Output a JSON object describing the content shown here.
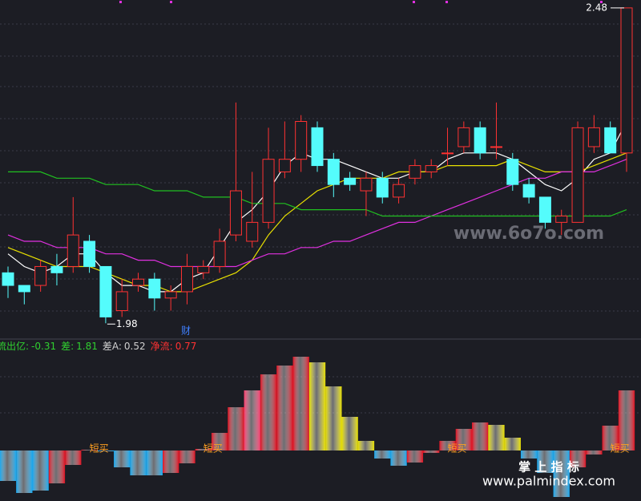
{
  "chart_data": [
    {
      "type": "candlestick",
      "open": [
        2.06,
        2.04,
        2.04,
        2.07,
        2.07,
        2.11,
        2.07,
        2.0,
        2.04,
        2.05,
        2.02,
        2.03,
        2.06,
        2.07,
        2.12,
        2.11,
        2.14,
        2.22,
        2.24,
        2.29,
        2.24,
        2.21,
        2.19,
        2.21,
        2.18,
        2.21,
        2.22,
        2.25,
        2.26,
        2.29,
        2.26,
        2.24,
        2.2,
        2.18,
        2.14,
        2.14,
        2.26,
        2.29,
        2.25
      ],
      "high": [
        2.07,
        2.04,
        2.08,
        2.09,
        2.18,
        2.12,
        2.07,
        2.05,
        2.06,
        2.06,
        2.04,
        2.09,
        2.08,
        2.13,
        2.33,
        2.22,
        2.29,
        2.3,
        2.31,
        2.3,
        2.25,
        2.22,
        2.22,
        2.22,
        2.21,
        2.24,
        2.24,
        2.29,
        2.3,
        2.3,
        2.33,
        2.25,
        2.21,
        2.18,
        2.16,
        2.3,
        2.31,
        2.3,
        2.48
      ],
      "low": [
        2.02,
        2.01,
        2.03,
        2.04,
        2.06,
        2.06,
        1.98,
        1.99,
        2.03,
        2.0,
        2.0,
        2.01,
        2.05,
        2.06,
        2.11,
        2.1,
        2.13,
        2.21,
        2.22,
        2.22,
        2.18,
        2.19,
        2.15,
        2.17,
        2.17,
        2.2,
        2.21,
        2.23,
        2.25,
        2.24,
        2.24,
        2.19,
        2.17,
        2.13,
        2.12,
        2.14,
        2.25,
        2.25,
        2.22
      ],
      "close": [
        2.04,
        2.03,
        2.07,
        2.06,
        2.12,
        2.07,
        1.99,
        2.03,
        2.05,
        2.02,
        2.03,
        2.07,
        2.07,
        2.11,
        2.19,
        2.14,
        2.24,
        2.24,
        2.3,
        2.23,
        2.2,
        2.2,
        2.21,
        2.18,
        2.2,
        2.23,
        2.23,
        2.25,
        2.29,
        2.25,
        2.26,
        2.2,
        2.18,
        2.14,
        2.15,
        2.29,
        2.29,
        2.25,
        2.48
      ],
      "up_color": "#ff3232",
      "down_color": "#54fcfc",
      "ylim": [
        1.96,
        2.49
      ],
      "series": [
        {
          "color": "#ffffff",
          "values": [
            2.09,
            2.07,
            2.06,
            2.07,
            2.09,
            2.09,
            2.06,
            2.04,
            2.04,
            2.03,
            2.03,
            2.05,
            2.06,
            2.1,
            2.14,
            2.16,
            2.19,
            2.23,
            2.25,
            2.24,
            2.24,
            2.23,
            2.22,
            2.21,
            2.21,
            2.22,
            2.22,
            2.24,
            2.25,
            2.25,
            2.25,
            2.24,
            2.22,
            2.2,
            2.19,
            2.21,
            2.24,
            2.25,
            2.3
          ]
        },
        {
          "color": "#e8e000",
          "values": [
            2.1,
            2.09,
            2.08,
            2.07,
            2.07,
            2.07,
            2.06,
            2.05,
            2.04,
            2.04,
            2.03,
            2.03,
            2.04,
            2.05,
            2.06,
            2.08,
            2.12,
            2.15,
            2.17,
            2.19,
            2.2,
            2.21,
            2.21,
            2.21,
            2.22,
            2.22,
            2.22,
            2.23,
            2.23,
            2.23,
            2.23,
            2.24,
            2.23,
            2.22,
            2.22,
            2.22,
            2.23,
            2.24,
            2.25
          ]
        },
        {
          "color": "#e030e0",
          "values": [
            2.12,
            2.11,
            2.11,
            2.1,
            2.1,
            2.1,
            2.09,
            2.09,
            2.08,
            2.08,
            2.07,
            2.07,
            2.07,
            2.07,
            2.07,
            2.08,
            2.09,
            2.09,
            2.1,
            2.1,
            2.11,
            2.11,
            2.12,
            2.13,
            2.14,
            2.14,
            2.15,
            2.16,
            2.17,
            2.18,
            2.19,
            2.2,
            2.21,
            2.21,
            2.22,
            2.22,
            2.22,
            2.23,
            2.24
          ]
        },
        {
          "color": "#20c020",
          "values": [
            2.22,
            2.22,
            2.22,
            2.21,
            2.21,
            2.21,
            2.2,
            2.2,
            2.2,
            2.19,
            2.19,
            2.19,
            2.18,
            2.18,
            2.18,
            2.17,
            2.17,
            2.17,
            2.16,
            2.16,
            2.16,
            2.16,
            2.16,
            2.15,
            2.15,
            2.15,
            2.15,
            2.15,
            2.15,
            2.15,
            2.15,
            2.15,
            2.15,
            2.15,
            2.15,
            2.15,
            2.15,
            2.15,
            2.16
          ]
        }
      ],
      "annotations": [
        "2.48",
        "1.98",
        "财"
      ]
    },
    {
      "type": "bar",
      "values": [
        -0.38,
        -0.53,
        -0.5,
        -0.41,
        -0.18,
        0.01,
        -0.01,
        -0.21,
        -0.31,
        -0.31,
        -0.28,
        -0.16,
        0.02,
        0.22,
        0.54,
        0.75,
        0.95,
        1.06,
        1.17,
        1.1,
        0.8,
        0.42,
        0.12,
        -0.1,
        -0.19,
        -0.15,
        -0.03,
        0.12,
        0.27,
        0.35,
        0.32,
        0.16,
        -0.1,
        -0.28,
        -0.58,
        -0.21,
        -0.05,
        0.31,
        0.75
      ],
      "colors": [
        "#18a8f0",
        "#18a8f0",
        "#18a8f0",
        "#e01020",
        "#e01020",
        "#e01020",
        "#18a8f0",
        "#18a8f0",
        "#18a8f0",
        "#18a8f0",
        "#e01020",
        "#e01020",
        "#e01020",
        "#e01020",
        "#e01020",
        "#ff3c6e",
        "#e01020",
        "#e01020",
        "#e01020",
        "#e8e000",
        "#e8e000",
        "#e8e000",
        "#e8e000",
        "#18a8f0",
        "#18a8f0",
        "#e01020",
        "#e01020",
        "#e01020",
        "#e01020",
        "#e01020",
        "#e8e000",
        "#e8e000",
        "#18a8f0",
        "#18a8f0",
        "#18a8f0",
        "#e01020",
        "#e01020",
        "#e01020",
        "#e01020"
      ],
      "ylim": [
        -0.63,
        1.32
      ],
      "legend": [
        {
          "name": "流出亿:",
          "value": -0.31,
          "color": "#30d030"
        },
        {
          "name": "差:",
          "value": 1.81,
          "color": "#30d030"
        },
        {
          "name": "差A:",
          "value": 0.52,
          "color": "#d0d0d0"
        },
        {
          "name": "净流:",
          "value": 0.77,
          "color": "#ff3232"
        }
      ],
      "signals": [
        "短买",
        "短买",
        "短买",
        "短买"
      ]
    }
  ],
  "watermarks": [
    "www.6o7o.com",
    "掌 上 指 标",
    "www.palmindex.com"
  ]
}
